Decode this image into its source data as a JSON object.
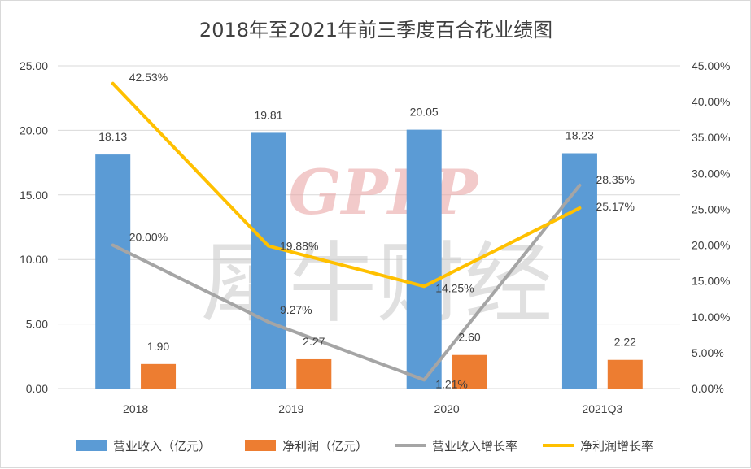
{
  "chart_data": {
    "type": "bar",
    "title": "2018年至2021年前三季度百合花业绩图",
    "categories": [
      "2018",
      "2019",
      "2020",
      "2021Q3"
    ],
    "left_axis": {
      "min": 0,
      "max": 25,
      "step": 5,
      "ticks": [
        "0.00",
        "5.00",
        "10.00",
        "15.00",
        "20.00",
        "25.00"
      ]
    },
    "right_axis": {
      "min": 0,
      "max": 45,
      "step": 5,
      "ticks": [
        "0.00%",
        "5.00%",
        "10.00%",
        "15.00%",
        "20.00%",
        "25.00%",
        "30.00%",
        "35.00%",
        "40.00%",
        "45.00%"
      ]
    },
    "series": [
      {
        "name": "营业收入（亿元）",
        "kind": "bar",
        "axis": "left",
        "color": "#5B9BD5",
        "values": [
          18.13,
          19.81,
          20.05,
          18.23
        ],
        "labels": [
          "18.13",
          "19.81",
          "20.05",
          "18.23"
        ]
      },
      {
        "name": "净利润（亿元）",
        "kind": "bar",
        "axis": "left",
        "color": "#ED7D31",
        "values": [
          1.9,
          2.27,
          2.6,
          2.22
        ],
        "labels": [
          "1.90",
          "2.27",
          "2.60",
          "2.22"
        ]
      },
      {
        "name": "营业收入增长率",
        "kind": "line",
        "axis": "right",
        "color": "#A5A5A5",
        "values": [
          20.0,
          9.27,
          1.21,
          28.35
        ],
        "labels": [
          "20.00%",
          "9.27%",
          "1.21%",
          "28.35%"
        ]
      },
      {
        "name": "净利润增长率",
        "kind": "line",
        "axis": "right",
        "color": "#FFC000",
        "values": [
          42.53,
          19.88,
          14.25,
          25.17
        ],
        "labels": [
          "42.53%",
          "19.88%",
          "14.25%",
          "25.17%"
        ]
      }
    ],
    "legend_position": "bottom",
    "grid": true
  },
  "watermark": {
    "latin": "GPLP",
    "cjk": "犀牛财经"
  },
  "colors": {
    "gridline": "#d9d9d9",
    "text": "#404040",
    "watermark_latin": "#e8a0a0",
    "watermark_cjk": "#c8c8c8"
  }
}
